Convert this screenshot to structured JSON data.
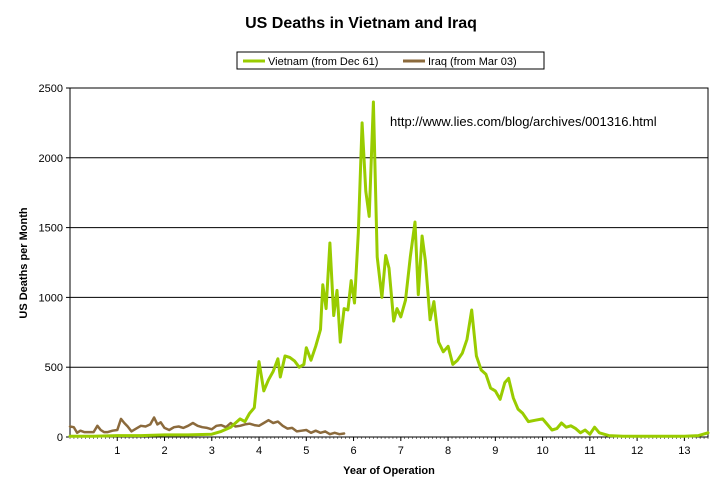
{
  "chart_data": {
    "type": "line",
    "title": "US Deaths in Vietnam and Iraq",
    "xlabel": "Year of Operation",
    "ylabel": "US Deaths per Month",
    "xlim": [
      0,
      13.5
    ],
    "ylim": [
      0,
      2500
    ],
    "x_ticks": [
      1,
      2,
      3,
      4,
      5,
      6,
      7,
      8,
      9,
      10,
      11,
      12,
      13
    ],
    "y_ticks": [
      0,
      500,
      1000,
      1500,
      2000,
      2500
    ],
    "grid": "horizontal",
    "legend_position": "top",
    "annotation": "http://www.lies.com/blog/archives/001316.html",
    "series": [
      {
        "name": "Vietnam (from Dec 61)",
        "color": "#99cc00",
        "points": [
          [
            0.0,
            5
          ],
          [
            0.5,
            5
          ],
          [
            1.0,
            10
          ],
          [
            1.5,
            10
          ],
          [
            2.0,
            15
          ],
          [
            2.5,
            15
          ],
          [
            3.0,
            20
          ],
          [
            3.2,
            40
          ],
          [
            3.4,
            70
          ],
          [
            3.6,
            130
          ],
          [
            3.7,
            110
          ],
          [
            3.8,
            170
          ],
          [
            3.9,
            210
          ],
          [
            4.0,
            540
          ],
          [
            4.1,
            330
          ],
          [
            4.2,
            410
          ],
          [
            4.3,
            470
          ],
          [
            4.4,
            560
          ],
          [
            4.45,
            430
          ],
          [
            4.55,
            580
          ],
          [
            4.65,
            570
          ],
          [
            4.75,
            545
          ],
          [
            4.85,
            500
          ],
          [
            4.95,
            520
          ],
          [
            5.0,
            640
          ],
          [
            5.1,
            550
          ],
          [
            5.2,
            650
          ],
          [
            5.3,
            770
          ],
          [
            5.35,
            1090
          ],
          [
            5.42,
            920
          ],
          [
            5.5,
            1390
          ],
          [
            5.58,
            870
          ],
          [
            5.65,
            1050
          ],
          [
            5.72,
            680
          ],
          [
            5.8,
            920
          ],
          [
            5.88,
            910
          ],
          [
            5.95,
            1120
          ],
          [
            6.02,
            960
          ],
          [
            6.1,
            1460
          ],
          [
            6.18,
            2250
          ],
          [
            6.26,
            1760
          ],
          [
            6.33,
            1580
          ],
          [
            6.42,
            2400
          ],
          [
            6.5,
            1290
          ],
          [
            6.6,
            1000
          ],
          [
            6.68,
            1300
          ],
          [
            6.75,
            1210
          ],
          [
            6.85,
            830
          ],
          [
            6.92,
            920
          ],
          [
            7.0,
            860
          ],
          [
            7.1,
            980
          ],
          [
            7.2,
            1290
          ],
          [
            7.3,
            1540
          ],
          [
            7.37,
            1020
          ],
          [
            7.45,
            1440
          ],
          [
            7.52,
            1260
          ],
          [
            7.62,
            840
          ],
          [
            7.7,
            970
          ],
          [
            7.8,
            680
          ],
          [
            7.9,
            610
          ],
          [
            8.0,
            650
          ],
          [
            8.1,
            520
          ],
          [
            8.2,
            550
          ],
          [
            8.3,
            600
          ],
          [
            8.4,
            700
          ],
          [
            8.5,
            910
          ],
          [
            8.6,
            580
          ],
          [
            8.7,
            480
          ],
          [
            8.8,
            450
          ],
          [
            8.9,
            350
          ],
          [
            9.0,
            330
          ],
          [
            9.1,
            270
          ],
          [
            9.2,
            390
          ],
          [
            9.28,
            420
          ],
          [
            9.38,
            280
          ],
          [
            9.48,
            200
          ],
          [
            9.58,
            170
          ],
          [
            9.7,
            110
          ],
          [
            9.85,
            120
          ],
          [
            10.0,
            130
          ],
          [
            10.1,
            90
          ],
          [
            10.2,
            50
          ],
          [
            10.3,
            60
          ],
          [
            10.4,
            100
          ],
          [
            10.5,
            70
          ],
          [
            10.6,
            80
          ],
          [
            10.7,
            60
          ],
          [
            10.8,
            30
          ],
          [
            10.9,
            50
          ],
          [
            11.0,
            20
          ],
          [
            11.1,
            70
          ],
          [
            11.2,
            30
          ],
          [
            11.4,
            10
          ],
          [
            11.7,
            5
          ],
          [
            12.0,
            5
          ],
          [
            12.5,
            5
          ],
          [
            13.0,
            5
          ],
          [
            13.3,
            10
          ],
          [
            13.5,
            30
          ]
        ]
      },
      {
        "name": "Iraq (from Mar 03)",
        "color": "#8b6a3c",
        "points": [
          [
            0.0,
            75
          ],
          [
            0.08,
            70
          ],
          [
            0.15,
            30
          ],
          [
            0.22,
            45
          ],
          [
            0.3,
            35
          ],
          [
            0.38,
            35
          ],
          [
            0.5,
            35
          ],
          [
            0.58,
            80
          ],
          [
            0.65,
            50
          ],
          [
            0.72,
            35
          ],
          [
            0.8,
            35
          ],
          [
            0.9,
            45
          ],
          [
            1.0,
            50
          ],
          [
            1.08,
            130
          ],
          [
            1.15,
            100
          ],
          [
            1.22,
            75
          ],
          [
            1.3,
            40
          ],
          [
            1.4,
            60
          ],
          [
            1.5,
            80
          ],
          [
            1.6,
            75
          ],
          [
            1.7,
            90
          ],
          [
            1.78,
            140
          ],
          [
            1.85,
            90
          ],
          [
            1.92,
            105
          ],
          [
            2.0,
            65
          ],
          [
            2.1,
            50
          ],
          [
            2.2,
            70
          ],
          [
            2.3,
            75
          ],
          [
            2.4,
            65
          ],
          [
            2.5,
            80
          ],
          [
            2.6,
            100
          ],
          [
            2.7,
            80
          ],
          [
            2.8,
            70
          ],
          [
            2.9,
            65
          ],
          [
            3.0,
            55
          ],
          [
            3.1,
            80
          ],
          [
            3.2,
            85
          ],
          [
            3.3,
            70
          ],
          [
            3.4,
            100
          ],
          [
            3.5,
            75
          ],
          [
            3.6,
            80
          ],
          [
            3.7,
            90
          ],
          [
            3.8,
            95
          ],
          [
            3.9,
            85
          ],
          [
            4.0,
            80
          ],
          [
            4.1,
            100
          ],
          [
            4.2,
            120
          ],
          [
            4.3,
            100
          ],
          [
            4.4,
            110
          ],
          [
            4.5,
            80
          ],
          [
            4.6,
            60
          ],
          [
            4.7,
            65
          ],
          [
            4.8,
            40
          ],
          [
            4.9,
            45
          ],
          [
            5.0,
            50
          ],
          [
            5.1,
            30
          ],
          [
            5.2,
            45
          ],
          [
            5.3,
            30
          ],
          [
            5.4,
            40
          ],
          [
            5.5,
            20
          ],
          [
            5.6,
            30
          ],
          [
            5.7,
            20
          ],
          [
            5.8,
            25
          ]
        ]
      }
    ]
  }
}
